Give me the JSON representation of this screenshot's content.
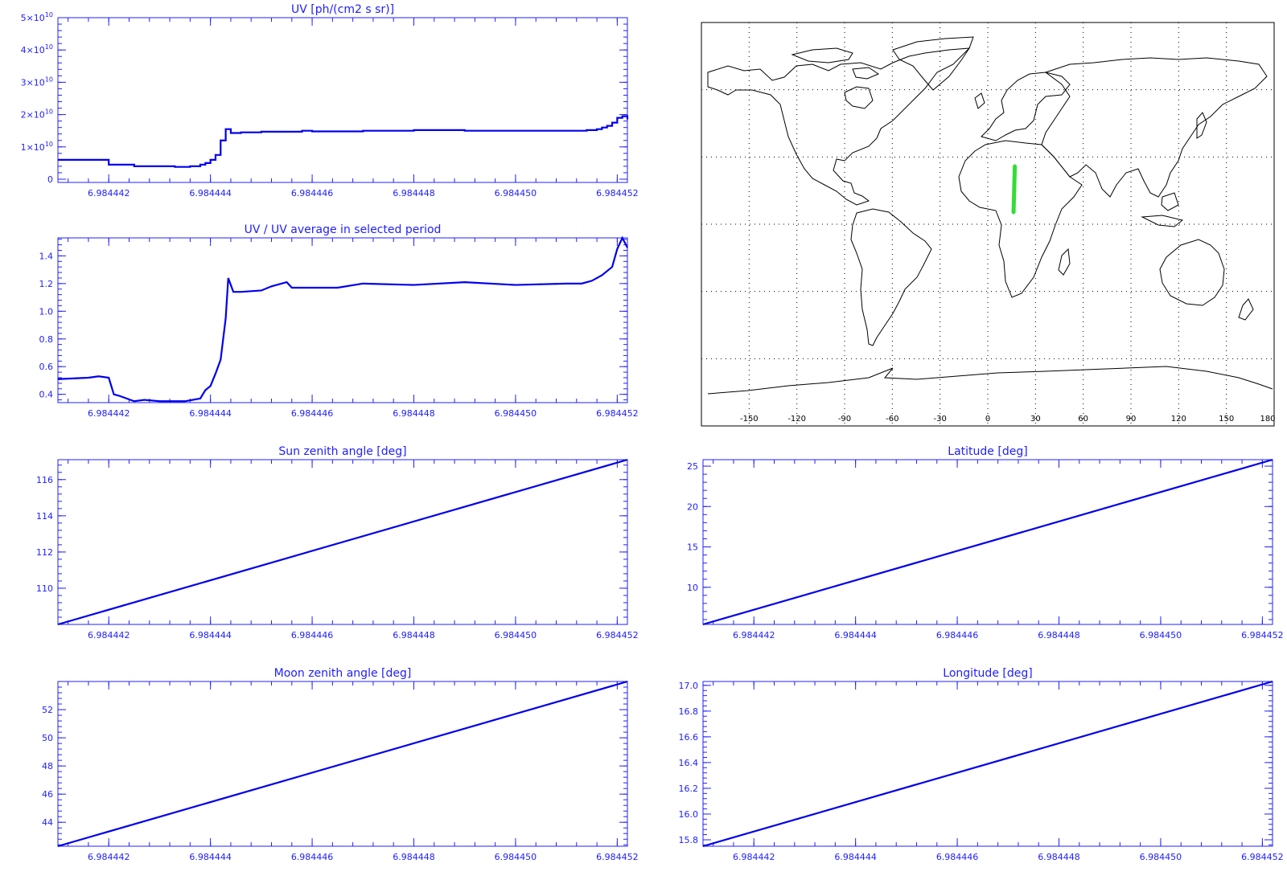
{
  "colors": {
    "axis": "#2020ff",
    "line": "#0000ee",
    "map_track": "#33dd33",
    "map_frame": "#000000"
  },
  "chart_data": [
    {
      "id": "uv",
      "type": "line",
      "step": true,
      "title": "UV [ph/(cm2 s sr)]",
      "xlim": [
        6.984441,
        6.9844522
      ],
      "xticks": [
        6.984442,
        6.984444,
        6.984446,
        6.984448,
        6.98445,
        6.984452
      ],
      "xtick_labels": [
        "6.984442",
        "6.984444",
        "6.984446",
        "6.984448",
        "6.984450",
        "6.984452"
      ],
      "ylim": [
        -1000000000.0,
        50000000000.0
      ],
      "yticks": [
        0,
        10000000000.0,
        20000000000.0,
        30000000000.0,
        40000000000.0,
        50000000000.0
      ],
      "ytick_labels": [
        {
          "base": "0",
          "exp": ""
        },
        {
          "base": "1×10",
          "exp": "10"
        },
        {
          "base": "2×10",
          "exp": "10"
        },
        {
          "base": "3×10",
          "exp": "10"
        },
        {
          "base": "4×10",
          "exp": "10"
        },
        {
          "base": "5×10",
          "exp": "10"
        }
      ],
      "series": [
        {
          "x": [
            6.984441,
            6.984442,
            6.9844425,
            6.9844433,
            6.9844436,
            6.9844438,
            6.9844439,
            6.984444,
            6.9844441,
            6.9844442,
            6.9844443,
            6.9844444,
            6.9844445,
            6.9844446,
            6.984445,
            6.9844458,
            6.984446,
            6.984447,
            6.984448,
            6.984449,
            6.98445,
            6.984451,
            6.9844514,
            6.9844516,
            6.9844517,
            6.9844518,
            6.9844519,
            6.984452,
            6.9844521,
            6.9844522
          ],
          "y": [
            6000000000.0,
            4500000000.0,
            4000000000.0,
            3800000000.0,
            4000000000.0,
            4500000000.0,
            5000000000.0,
            6000000000.0,
            7500000000.0,
            12000000000.0,
            15500000000.0,
            14300000000.0,
            14300000000.0,
            14500000000.0,
            14700000000.0,
            15000000000.0,
            14800000000.0,
            15000000000.0,
            15200000000.0,
            15000000000.0,
            15000000000.0,
            15000000000.0,
            15200000000.0,
            15500000000.0,
            16000000000.0,
            16500000000.0,
            17500000000.0,
            19000000000.0,
            19500000000.0,
            18500000000.0
          ]
        }
      ]
    },
    {
      "id": "uvratio",
      "type": "line",
      "title": "UV / UV average in selected period",
      "xlim": [
        6.984441,
        6.9844522
      ],
      "xticks": [
        6.984442,
        6.984444,
        6.984446,
        6.984448,
        6.98445,
        6.984452
      ],
      "xtick_labels": [
        "6.984442",
        "6.984444",
        "6.984446",
        "6.984448",
        "6.984450",
        "6.984452"
      ],
      "ylim": [
        0.34,
        1.53
      ],
      "yticks": [
        0.4,
        0.6,
        0.8,
        1.0,
        1.2,
        1.4
      ],
      "ytick_labels": [
        "0.4",
        "0.6",
        "0.8",
        "1.0",
        "1.2",
        "1.4"
      ],
      "series": [
        {
          "x": [
            6.984441,
            6.9844416,
            6.9844418,
            6.984442,
            6.9844421,
            6.9844422,
            6.9844425,
            6.9844427,
            6.984443,
            6.9844432,
            6.9844435,
            6.9844438,
            6.9844439,
            6.984444,
            6.9844441,
            6.9844442,
            6.9844443,
            6.98444435,
            6.98444445,
            6.9844446,
            6.984445,
            6.9844452,
            6.9844455,
            6.9844456,
            6.984446,
            6.9844465,
            6.984447,
            6.984448,
            6.984449,
            6.98445,
            6.984451,
            6.9844513,
            6.9844515,
            6.9844517,
            6.9844519,
            6.984452,
            6.9844521,
            6.9844522
          ],
          "y": [
            0.51,
            0.52,
            0.53,
            0.52,
            0.4,
            0.39,
            0.35,
            0.36,
            0.35,
            0.35,
            0.35,
            0.37,
            0.43,
            0.46,
            0.55,
            0.65,
            0.95,
            1.24,
            1.14,
            1.14,
            1.15,
            1.18,
            1.21,
            1.17,
            1.17,
            1.17,
            1.2,
            1.19,
            1.21,
            1.19,
            1.2,
            1.2,
            1.22,
            1.26,
            1.32,
            1.45,
            1.53,
            1.46
          ]
        }
      ]
    },
    {
      "id": "sunzen",
      "type": "line",
      "title": "Sun zenith angle [deg]",
      "xlim": [
        6.984441,
        6.9844522
      ],
      "xticks": [
        6.984442,
        6.984444,
        6.984446,
        6.984448,
        6.98445,
        6.984452
      ],
      "xtick_labels": [
        "6.984442",
        "6.984444",
        "6.984446",
        "6.984448",
        "6.984450",
        "6.984452"
      ],
      "ylim": [
        108.0,
        117.1
      ],
      "yticks": [
        110,
        112,
        114,
        116
      ],
      "ytick_labels": [
        "110",
        "112",
        "114",
        "116"
      ],
      "series": [
        {
          "x": [
            6.984441,
            6.9844522
          ],
          "y": [
            108.0,
            117.1
          ]
        }
      ]
    },
    {
      "id": "moonzen",
      "type": "line",
      "title": "Moon zenith angle [deg]",
      "xlim": [
        6.984441,
        6.9844522
      ],
      "xticks": [
        6.984442,
        6.984444,
        6.984446,
        6.984448,
        6.98445,
        6.984452
      ],
      "xtick_labels": [
        "6.984442",
        "6.984444",
        "6.984446",
        "6.984448",
        "6.984450",
        "6.984452"
      ],
      "ylim": [
        42.3,
        54.0
      ],
      "yticks": [
        44,
        46,
        48,
        50,
        52
      ],
      "ytick_labels": [
        "44",
        "46",
        "48",
        "50",
        "52"
      ],
      "series": [
        {
          "x": [
            6.984441,
            6.9844522
          ],
          "y": [
            42.3,
            54.0
          ]
        }
      ]
    },
    {
      "id": "lat",
      "type": "line",
      "title": "Latitude [deg]",
      "xlim": [
        6.984441,
        6.9844522
      ],
      "xticks": [
        6.984442,
        6.984444,
        6.984446,
        6.984448,
        6.98445,
        6.984452
      ],
      "xtick_labels": [
        "6.984442",
        "6.984444",
        "6.984446",
        "6.984448",
        "6.984450",
        "6.984452"
      ],
      "ylim": [
        5.4,
        25.8
      ],
      "yticks": [
        10,
        15,
        20,
        25
      ],
      "ytick_labels": [
        "10",
        "15",
        "20",
        "25"
      ],
      "series": [
        {
          "x": [
            6.984441,
            6.9844522
          ],
          "y": [
            5.4,
            25.8
          ]
        }
      ]
    },
    {
      "id": "lon",
      "type": "line",
      "title": "Longitude [deg]",
      "xlim": [
        6.984441,
        6.9844522
      ],
      "xticks": [
        6.984442,
        6.984444,
        6.984446,
        6.984448,
        6.98445,
        6.984452
      ],
      "xtick_labels": [
        "6.984442",
        "6.984444",
        "6.984446",
        "6.984448",
        "6.984450",
        "6.984452"
      ],
      "ylim": [
        15.75,
        17.03
      ],
      "yticks": [
        15.8,
        16.0,
        16.2,
        16.4,
        16.6,
        16.8,
        17.0
      ],
      "ytick_labels": [
        "15.8",
        "16.0",
        "16.2",
        "16.4",
        "16.6",
        "16.8",
        "17.0"
      ],
      "series": [
        {
          "x": [
            6.984441,
            6.9844522
          ],
          "y": [
            15.75,
            17.03
          ]
        }
      ]
    }
  ],
  "map": {
    "type": "map",
    "xlim": [
      -180,
      180
    ],
    "ylim": [
      -90,
      90
    ],
    "xtick_labels": [
      "-150",
      "-120",
      "-90",
      "-60",
      "-30",
      "0",
      "30",
      "60",
      "90",
      "120",
      "150",
      "180"
    ],
    "xticks": [
      -150,
      -120,
      -90,
      -60,
      -30,
      0,
      30,
      60,
      90,
      120,
      150,
      180
    ],
    "grid_lon": [
      -150,
      -120,
      -90,
      -60,
      -30,
      0,
      30,
      60,
      90,
      120,
      150
    ],
    "grid_lat": [
      -60,
      -30,
      0,
      30,
      60
    ],
    "track": {
      "lon": [
        16.2,
        17.0
      ],
      "lat": [
        5.4,
        25.8
      ]
    }
  }
}
